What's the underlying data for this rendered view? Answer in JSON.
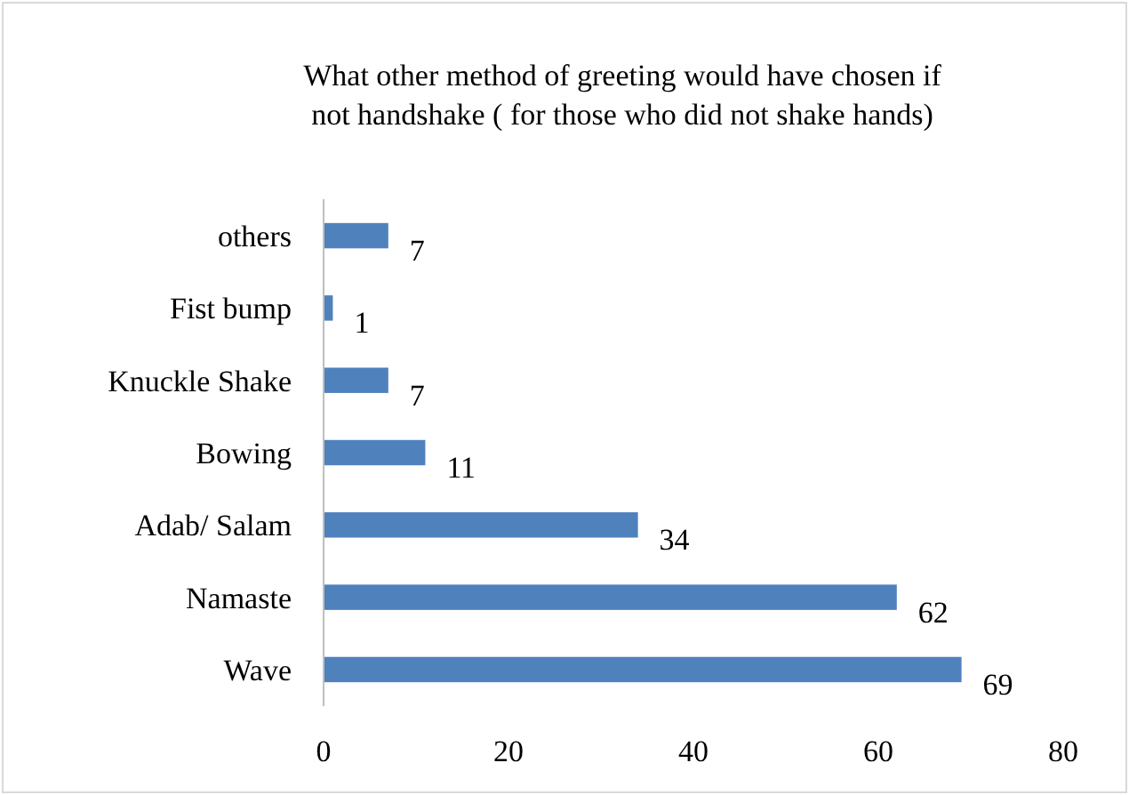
{
  "chart_data": {
    "type": "bar",
    "orientation": "horizontal",
    "title": "What other method of greeting would have chosen if\nnot handshake ( for those who did not shake hands)",
    "categories": [
      "others",
      "Fist bump",
      "Knuckle Shake",
      "Bowing",
      "Adab/ Salam",
      "Namaste",
      "Wave"
    ],
    "values": [
      7,
      1,
      7,
      11,
      34,
      62,
      69
    ],
    "color": "#4f81bd",
    "xlim": [
      0,
      80
    ],
    "xticks": [
      0,
      20,
      40,
      60,
      80
    ],
    "data_labels": true
  }
}
